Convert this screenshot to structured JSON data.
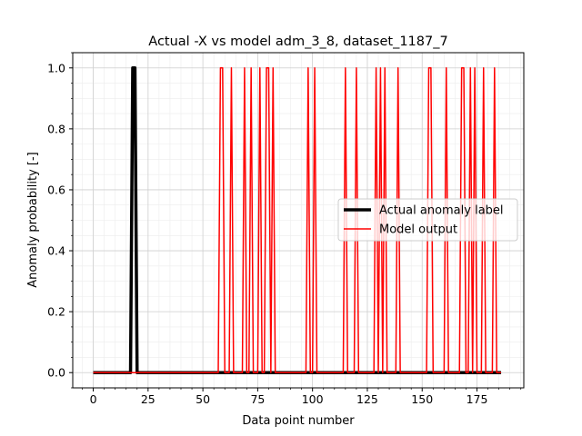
{
  "chart_data": {
    "type": "line",
    "title": "Actual -X vs model adm_3_8, dataset_1187_7",
    "xlabel": "Data point number",
    "ylabel": "Anomaly probability [-]",
    "xlim": [
      -9.35,
      196.35
    ],
    "ylim": [
      -0.05,
      1.05
    ],
    "x_major_ticks": [
      0,
      25,
      50,
      75,
      100,
      125,
      150,
      175
    ],
    "x_tick_labels": [
      "0",
      "25",
      "50",
      "75",
      "100",
      "125",
      "150",
      "175"
    ],
    "x_minor_step": 5,
    "y_major_ticks": [
      0.0,
      0.2,
      0.4,
      0.6,
      0.8,
      1.0
    ],
    "y_tick_labels": [
      "0.0",
      "0.2",
      "0.4",
      "0.6",
      "0.8",
      "1.0"
    ],
    "y_minor_step": 0.05,
    "grid": true,
    "minor_grid": true,
    "legend_position": "center-right",
    "series": [
      {
        "name": "Actual anomaly label",
        "color": "#000000",
        "style": "thick",
        "ones": [
          18,
          19
        ]
      },
      {
        "name": "Model output",
        "color": "#ff0000",
        "style": "thin",
        "ones": [
          58,
          59,
          63,
          69,
          72,
          76,
          79,
          80,
          82,
          98,
          101,
          115,
          120,
          129,
          131,
          133,
          139,
          153,
          154,
          161,
          168,
          169,
          172,
          174,
          178,
          183
        ]
      }
    ],
    "x_range": [
      0,
      186
    ]
  }
}
